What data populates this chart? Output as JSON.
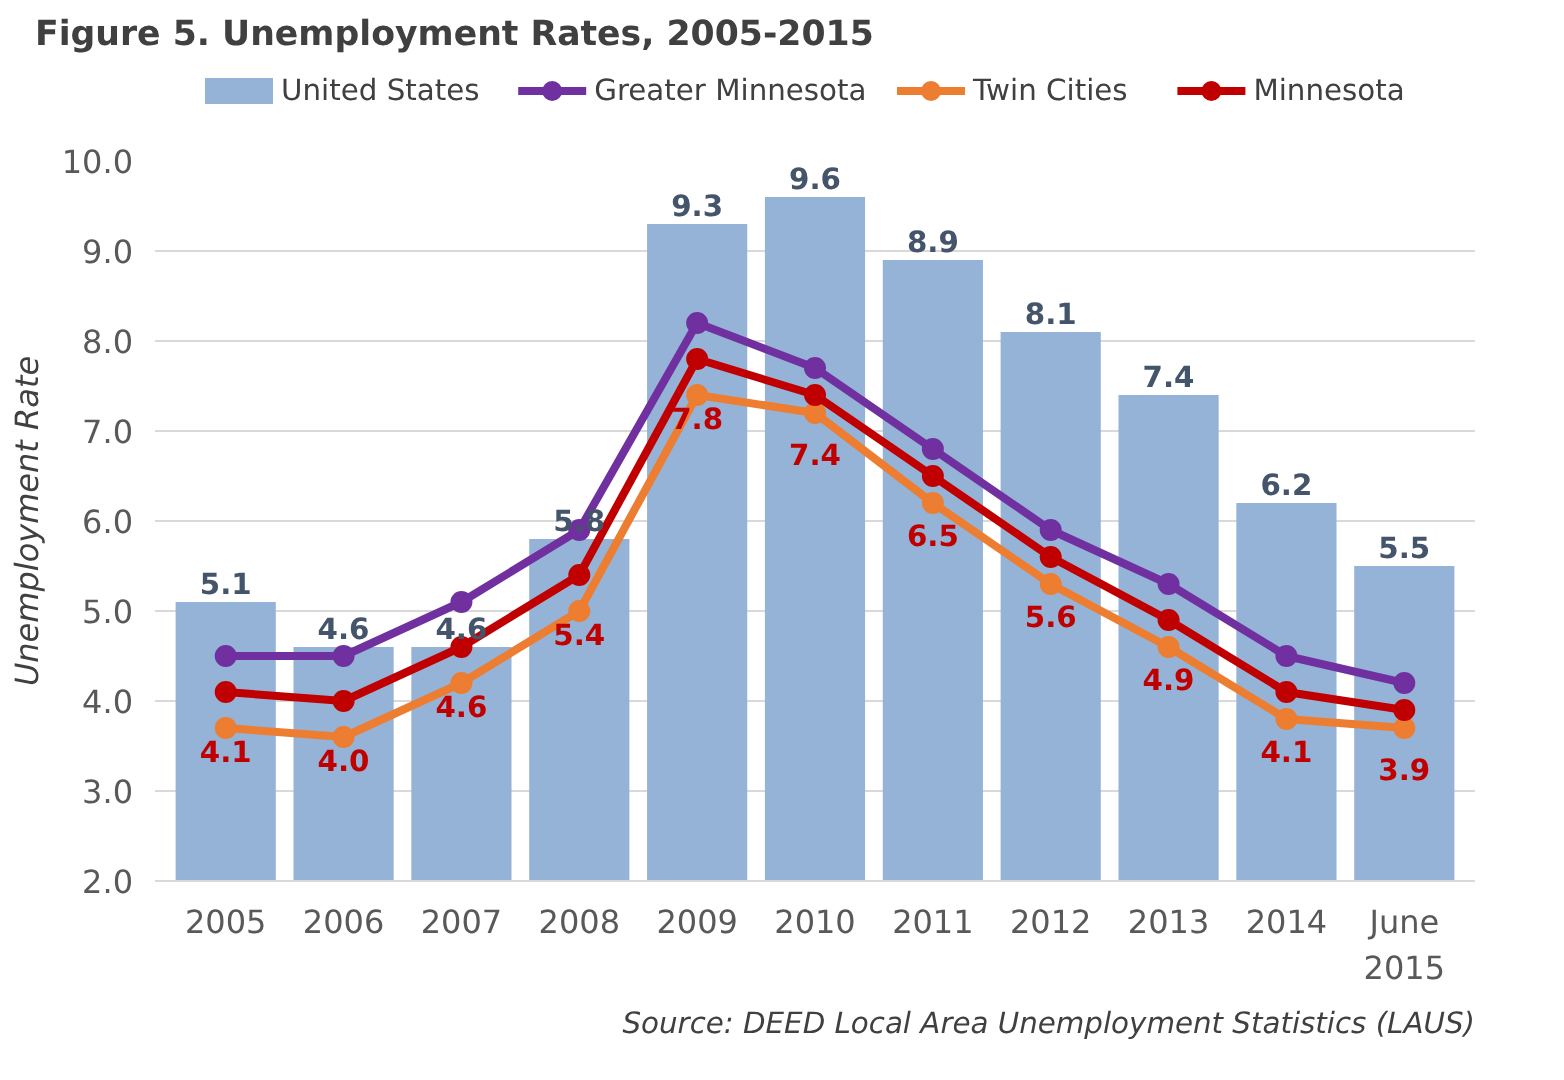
{
  "chart_data": {
    "type": "bar",
    "title": "Figure 5. Unemployment Rates, 2005-2015",
    "ylabel": "Unemployment Rate",
    "categories": [
      "2005",
      "2006",
      "2007",
      "2008",
      "2009",
      "2010",
      "2011",
      "2012",
      "2013",
      "2014",
      "June\n2015"
    ],
    "series": [
      {
        "name": "United States",
        "type": "bar",
        "color": "#95b3d7",
        "values": [
          5.1,
          4.6,
          4.6,
          5.8,
          9.3,
          9.6,
          8.9,
          8.1,
          7.4,
          6.2,
          5.5
        ],
        "value_labels": [
          "5.1",
          "4.6",
          "4.6",
          "5.8",
          "9.3",
          "9.6",
          "8.9",
          "8.1",
          "7.4",
          "6.2",
          "5.5"
        ]
      },
      {
        "name": "Greater Minnesota",
        "type": "line",
        "color": "#7030a0",
        "values": [
          4.5,
          4.5,
          5.1,
          5.9,
          8.2,
          7.7,
          6.8,
          5.9,
          5.3,
          4.5,
          4.2
        ]
      },
      {
        "name": "Twin Cities",
        "type": "line",
        "color": "#ed7d31",
        "values": [
          3.7,
          3.6,
          4.2,
          5.0,
          7.4,
          7.2,
          6.2,
          5.3,
          4.6,
          3.8,
          3.7
        ]
      },
      {
        "name": "Minnesota",
        "type": "line",
        "color": "#c00000",
        "values": [
          4.1,
          4.0,
          4.6,
          5.4,
          7.8,
          7.4,
          6.5,
          5.6,
          4.9,
          4.1,
          3.9
        ],
        "value_labels": [
          "4.1",
          "4.0",
          "4.6",
          "5.4",
          "7.8",
          "7.4",
          "6.5",
          "5.6",
          "4.9",
          "4.1",
          "3.9"
        ]
      }
    ],
    "ylim": [
      2.0,
      10.0
    ],
    "yticks": [
      {
        "value": 2,
        "label": "2.0"
      },
      {
        "value": 3,
        "label": "3.0"
      },
      {
        "value": 4,
        "label": "4.0"
      },
      {
        "value": 5,
        "label": "5.0"
      },
      {
        "value": 6,
        "label": "6.0"
      },
      {
        "value": 7,
        "label": "7.0"
      },
      {
        "value": 8,
        "label": "8.0"
      },
      {
        "value": 9,
        "label": "9.0"
      },
      {
        "value": 10,
        "label": "10.0"
      }
    ],
    "grid": "y",
    "legend": "top",
    "marker": "circle",
    "line_style": "solid",
    "annotations": [
      "Source: DEED Local Area Unemployment Statistics (LAUS)"
    ]
  }
}
